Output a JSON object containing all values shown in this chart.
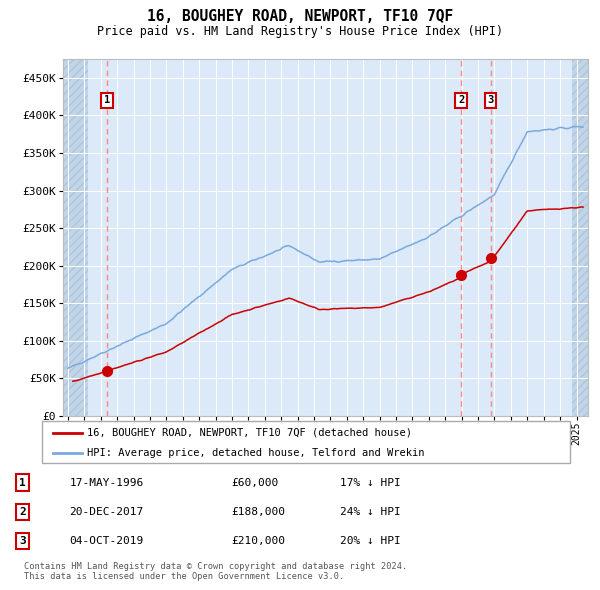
{
  "title": "16, BOUGHEY ROAD, NEWPORT, TF10 7QF",
  "subtitle": "Price paid vs. HM Land Registry's House Price Index (HPI)",
  "ylim": [
    0,
    475000
  ],
  "xlim_start": 1993.7,
  "xlim_end": 2025.7,
  "yticks": [
    0,
    50000,
    100000,
    150000,
    200000,
    250000,
    300000,
    350000,
    400000,
    450000
  ],
  "ytick_labels": [
    "£0",
    "£50K",
    "£100K",
    "£150K",
    "£200K",
    "£250K",
    "£300K",
    "£350K",
    "£400K",
    "£450K"
  ],
  "hpi_color": "#7aaadd",
  "price_color": "#cc0000",
  "dashed_color": "#ff8888",
  "bg_color": "#dce9f8",
  "grid_color": "#ffffff",
  "transaction_dates": [
    1996.37,
    2017.97,
    2019.76
  ],
  "transaction_prices": [
    60000,
    188000,
    210000
  ],
  "transaction_labels": [
    "1",
    "2",
    "3"
  ],
  "legend_label_price": "16, BOUGHEY ROAD, NEWPORT, TF10 7QF (detached house)",
  "legend_label_hpi": "HPI: Average price, detached house, Telford and Wrekin",
  "table_data": [
    [
      "1",
      "17-MAY-1996",
      "£60,000",
      "17% ↓ HPI"
    ],
    [
      "2",
      "20-DEC-2017",
      "£188,000",
      "24% ↓ HPI"
    ],
    [
      "3",
      "04-OCT-2019",
      "£210,000",
      "20% ↓ HPI"
    ]
  ],
  "footnote": "Contains HM Land Registry data © Crown copyright and database right 2024.\nThis data is licensed under the Open Government Licence v3.0.",
  "hatch_end_year": 1995.2,
  "hatch_start_year": 2024.75
}
